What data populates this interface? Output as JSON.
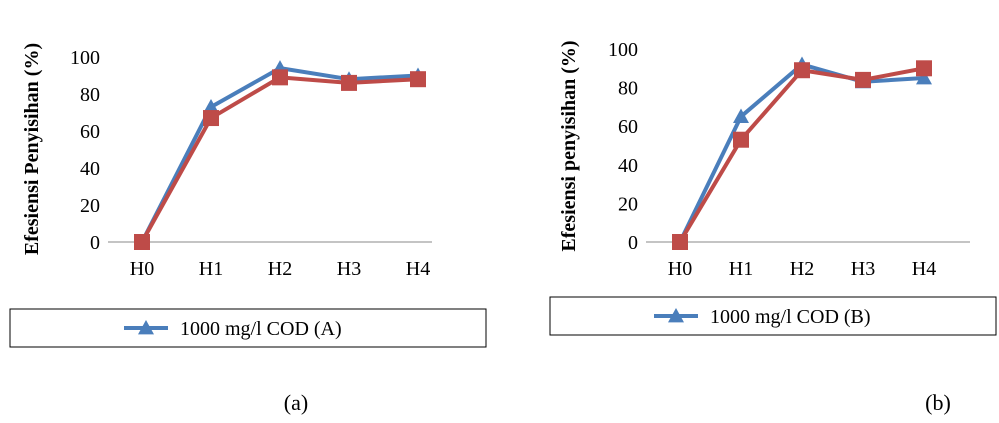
{
  "chart_data": [
    {
      "id": "a",
      "type": "line",
      "categories": [
        "H0",
        "H1",
        "H2",
        "H3",
        "H4"
      ],
      "ylabel": "Efesiensi Penyisihan (%)",
      "ylim": [
        0,
        100
      ],
      "yticks": [
        0,
        20,
        40,
        60,
        80,
        100
      ],
      "grid": false,
      "legend": {
        "placement": "bottom",
        "label": "1000 mg/l COD (A)"
      },
      "caption": "(a)",
      "series": [
        {
          "name": "1000 mg/l COD (A)",
          "marker": "triangle",
          "color": "#4A7EBB",
          "values": [
            0,
            73,
            94,
            88,
            90
          ]
        },
        {
          "marker": "square",
          "color": "#BE4B48",
          "values": [
            0,
            67,
            89,
            86,
            88
          ]
        }
      ]
    },
    {
      "id": "b",
      "type": "line",
      "categories": [
        "H0",
        "H1",
        "H2",
        "H3",
        "H4"
      ],
      "ylabel": "Efesiensi penyisihan (%)",
      "ylim": [
        0,
        100
      ],
      "yticks": [
        0,
        20,
        40,
        60,
        80,
        100
      ],
      "grid": false,
      "legend": {
        "placement": "bottom",
        "label": "1000 mg/l COD (B)"
      },
      "caption": "(b)",
      "series": [
        {
          "name": "1000 mg/l COD (B)",
          "marker": "triangle",
          "color": "#4A7EBB",
          "values": [
            0,
            65,
            92,
            83,
            85
          ]
        },
        {
          "marker": "square",
          "color": "#BE4B48",
          "values": [
            0,
            53,
            89,
            84,
            90
          ]
        }
      ]
    }
  ]
}
